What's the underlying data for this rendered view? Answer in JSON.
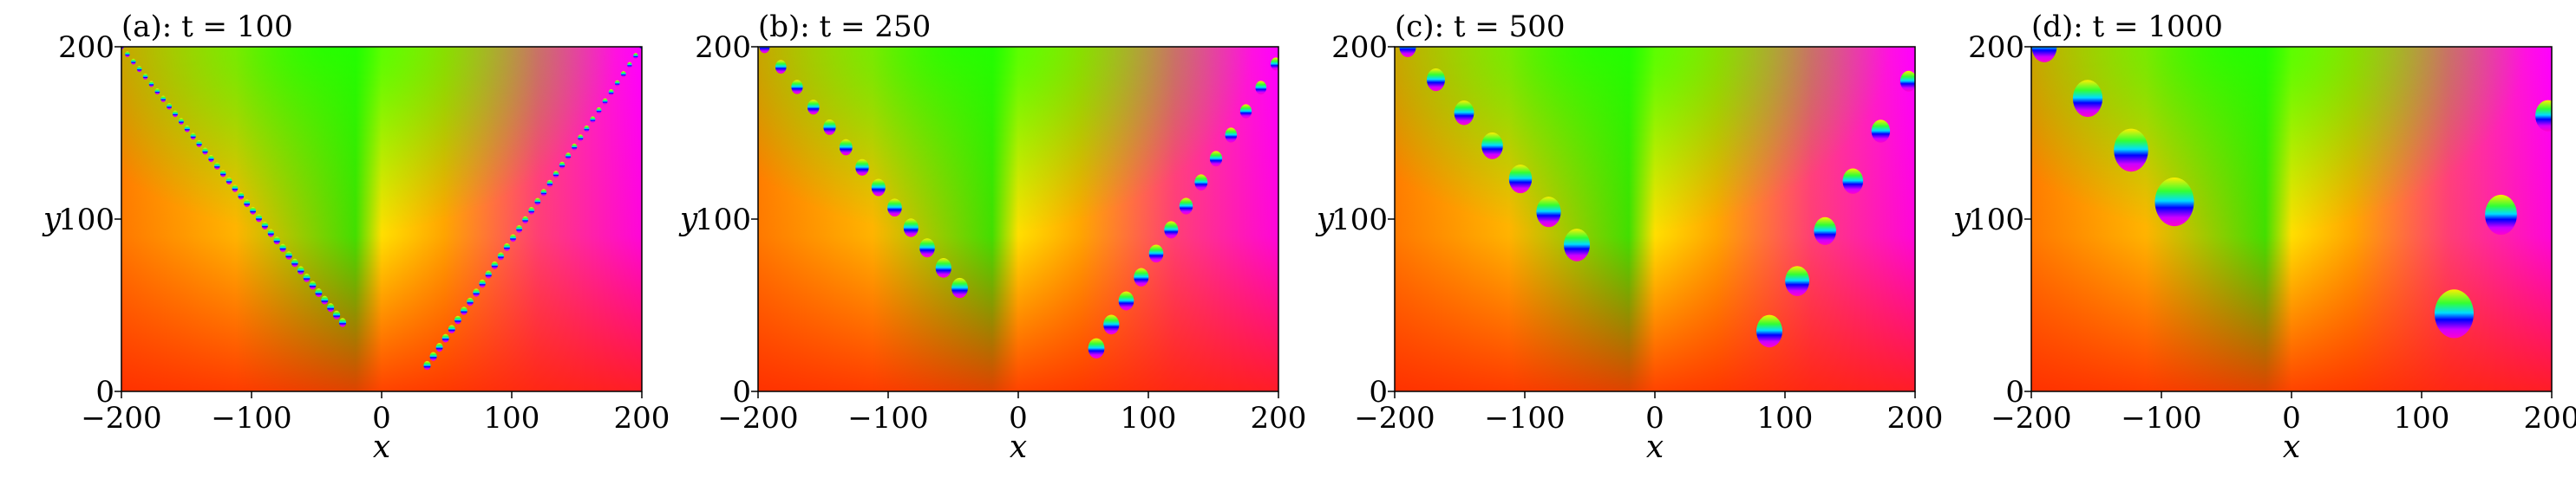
{
  "chart_data": [
    {
      "type": "heatmap",
      "title": "(a): t = 100",
      "xlabel": "x",
      "ylabel": "y",
      "xlim": [
        -200,
        200
      ],
      "ylim": [
        0,
        200
      ],
      "xticks": [
        -200,
        -100,
        0,
        100,
        200
      ],
      "xtick_labels": [
        "−200",
        "−100",
        "0",
        "100",
        "200"
      ],
      "yticks": [
        0,
        100,
        200
      ],
      "ytick_labels": [
        "0",
        "100",
        "200"
      ],
      "colormap": "hsv phase",
      "background": {
        "upper_left": "#22ff00",
        "upper_center": "#ffff00",
        "right": "#ff00ff",
        "bottom": "#ff2200",
        "left": "#ff8800"
      },
      "vortex_chains": [
        {
          "side": "left",
          "from": [
            -30,
            40
          ],
          "to": [
            -200,
            200
          ],
          "count": 38,
          "radius": 2.2
        },
        {
          "side": "right",
          "from": [
            35,
            15
          ],
          "to": [
            200,
            200
          ],
          "count": 36,
          "radius": 2.2
        }
      ]
    },
    {
      "type": "heatmap",
      "title": "(b): t = 250",
      "xlabel": "x",
      "ylabel": "y",
      "xlim": [
        -200,
        200
      ],
      "ylim": [
        0,
        200
      ],
      "xticks": [
        -200,
        -100,
        0,
        100,
        200
      ],
      "xtick_labels": [
        "−200",
        "−100",
        "0",
        "100",
        "200"
      ],
      "yticks": [
        0,
        100,
        200
      ],
      "ytick_labels": [
        "0",
        "100",
        "200"
      ],
      "colormap": "hsv phase",
      "background": {
        "upper_left": "#22ff00",
        "upper_center": "#ffff00",
        "right": "#ff00ff",
        "bottom": "#ff2200",
        "left": "#ff8800"
      },
      "vortex_chains": [
        {
          "side": "left",
          "from": [
            -45,
            60
          ],
          "to": [
            -195,
            200
          ],
          "count": 13,
          "radius": 5
        },
        {
          "side": "right",
          "from": [
            60,
            25
          ],
          "to": [
            198,
            190
          ],
          "count": 13,
          "radius": 5
        }
      ]
    },
    {
      "type": "heatmap",
      "title": "(c): t = 500",
      "xlabel": "x",
      "ylabel": "y",
      "xlim": [
        -200,
        200
      ],
      "ylim": [
        0,
        200
      ],
      "xticks": [
        -200,
        -100,
        0,
        100,
        200
      ],
      "xtick_labels": [
        "−200",
        "−100",
        "0",
        "100",
        "200"
      ],
      "yticks": [
        0,
        100,
        200
      ],
      "ytick_labels": [
        "0",
        "100",
        "200"
      ],
      "colormap": "hsv phase",
      "background": {
        "upper_left": "#22ff00",
        "upper_center": "#ffff00",
        "right": "#ff00ff",
        "bottom": "#ff2200",
        "left": "#ff8800"
      },
      "vortex_chains": [
        {
          "side": "left",
          "from": [
            -60,
            85
          ],
          "to": [
            -190,
            200
          ],
          "count": 7,
          "radius": 8
        },
        {
          "side": "right",
          "from": [
            88,
            35
          ],
          "to": [
            195,
            180
          ],
          "count": 6,
          "radius": 8
        }
      ]
    },
    {
      "type": "heatmap",
      "title": "(d): t = 1000",
      "xlabel": "x",
      "ylabel": "y",
      "xlim": [
        -200,
        200
      ],
      "ylim": [
        0,
        200
      ],
      "xticks": [
        -200,
        -100,
        0,
        100,
        200
      ],
      "xtick_labels": [
        "−200",
        "−100",
        "0",
        "100",
        "200"
      ],
      "yticks": [
        0,
        100,
        200
      ],
      "ytick_labels": [
        "0",
        "100",
        "200"
      ],
      "colormap": "hsv phase",
      "background": {
        "upper_left": "#22ff00",
        "upper_center": "#ffff00",
        "right": "#ff00ff",
        "bottom": "#ff2200",
        "left": "#ff8800"
      },
      "vortex_chains": [
        {
          "side": "left",
          "from": [
            -90,
            110
          ],
          "to": [
            -190,
            200
          ],
          "count": 4,
          "radius": 12
        },
        {
          "side": "right",
          "from": [
            125,
            45
          ],
          "to": [
            197,
            160
          ],
          "count": 3,
          "radius": 12
        }
      ]
    }
  ]
}
